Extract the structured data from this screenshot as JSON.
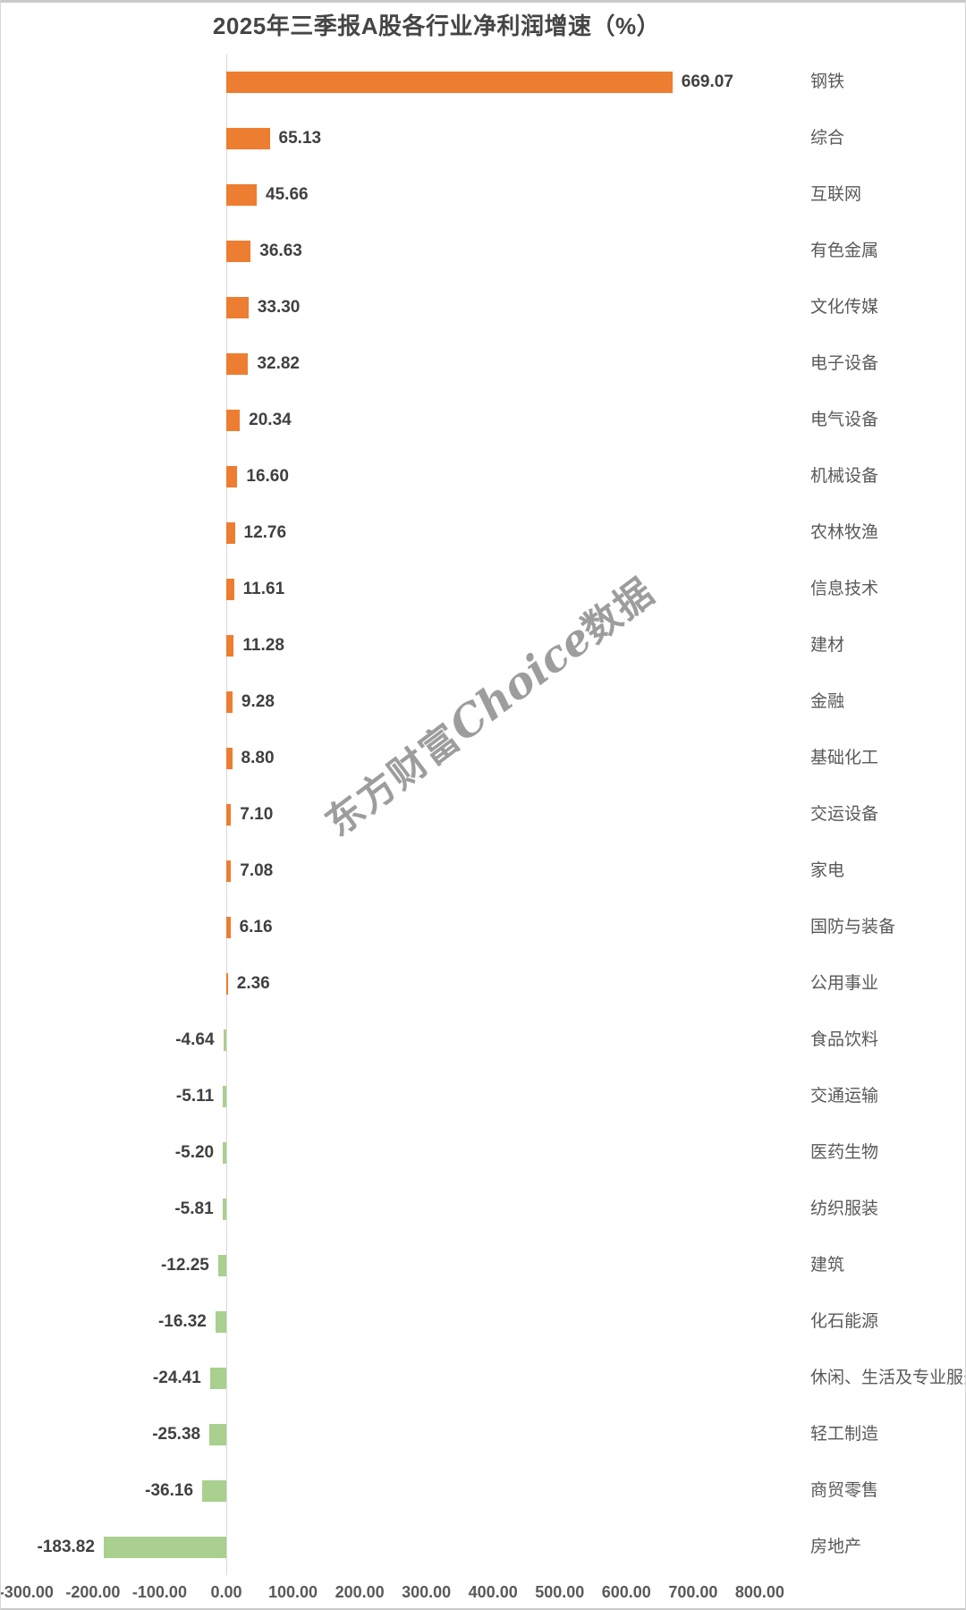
{
  "chart_data": {
    "type": "bar",
    "orientation": "horizontal",
    "title": "2025年三季报A股各行业净利润增速（%）",
    "categories": [
      "钢铁",
      "综合",
      "互联网",
      "有色金属",
      "文化传媒",
      "电子设备",
      "电气设备",
      "机械设备",
      "农林牧渔",
      "信息技术",
      "建材",
      "金融",
      "基础化工",
      "交运设备",
      "家电",
      "国防与装备",
      "公用事业",
      "食品饮料",
      "交通运输",
      "医药生物",
      "纺织服装",
      "建筑",
      "化石能源",
      "休闲、生活及专业服务",
      "轻工制造",
      "商贸零售",
      "房地产"
    ],
    "values": [
      669.07,
      65.13,
      45.66,
      36.63,
      33.3,
      32.82,
      20.34,
      16.6,
      12.76,
      11.61,
      11.28,
      9.28,
      8.8,
      7.1,
      7.08,
      6.16,
      2.36,
      -4.64,
      -5.11,
      -5.2,
      -5.81,
      -12.25,
      -16.32,
      -24.41,
      -25.38,
      -36.16,
      -183.82
    ],
    "xlim": [
      -300,
      800
    ],
    "x_tick_values": [
      -300,
      -200,
      -100,
      0,
      100,
      200,
      300,
      400,
      500,
      600,
      700,
      800
    ],
    "x_tick_labels": [
      "-300.00",
      "-200.00",
      "-100.00",
      "0.00",
      "100.00",
      "200.00",
      "300.00",
      "400.00",
      "500.00",
      "600.00",
      "700.00",
      "800.00"
    ],
    "value_label_decimals": 2,
    "grid": false,
    "legend_position": "none",
    "positive_color": "#ED7D31",
    "negative_color": "#A9D08E",
    "axis_line_color": "#d9d9d9",
    "title_color": "#454545",
    "value_label_color": "#404040",
    "category_label_color": "#595959",
    "tick_label_color": "#595959"
  },
  "watermark": {
    "prefix": "东方财富",
    "brand": "Choice",
    "suffix": "数据"
  }
}
